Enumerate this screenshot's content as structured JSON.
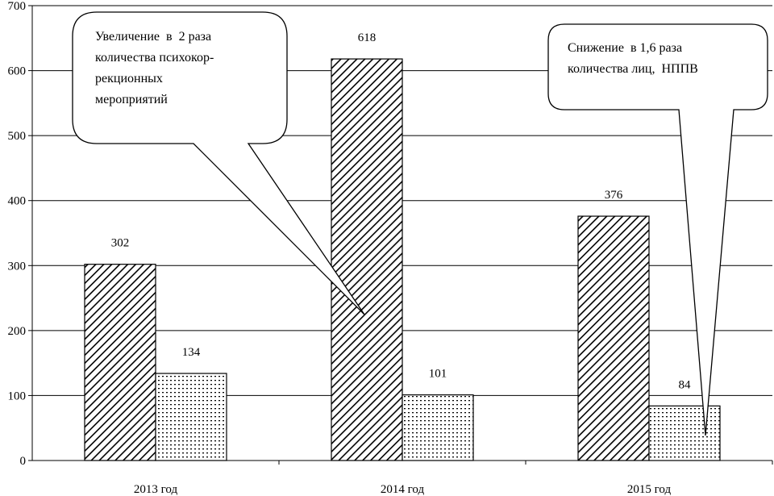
{
  "chart_data": {
    "type": "bar",
    "categories": [
      "2013 год",
      "2014 год",
      "2015 год"
    ],
    "series": [
      {
        "values": [
          302,
          618,
          376
        ],
        "pattern": "diagonal-hatch"
      },
      {
        "values": [
          134,
          101,
          84
        ],
        "pattern": "dotted"
      }
    ],
    "ylim": [
      0,
      700
    ],
    "yticks": [
      0,
      100,
      200,
      300,
      400,
      500,
      600,
      700
    ],
    "data_labels": true,
    "grid": true,
    "annotations": [
      {
        "id": "left",
        "text": "Увеличение  в  2 раза\nколичества психокор-\nрекционных\nмероприятий"
      },
      {
        "id": "right",
        "text": "Снижение  в 1,6 раза\nколичества лиц,  НППВ"
      }
    ]
  },
  "colors": {
    "bar_fill": "#ffffff",
    "stroke": "#000000",
    "grid": "#000000"
  }
}
